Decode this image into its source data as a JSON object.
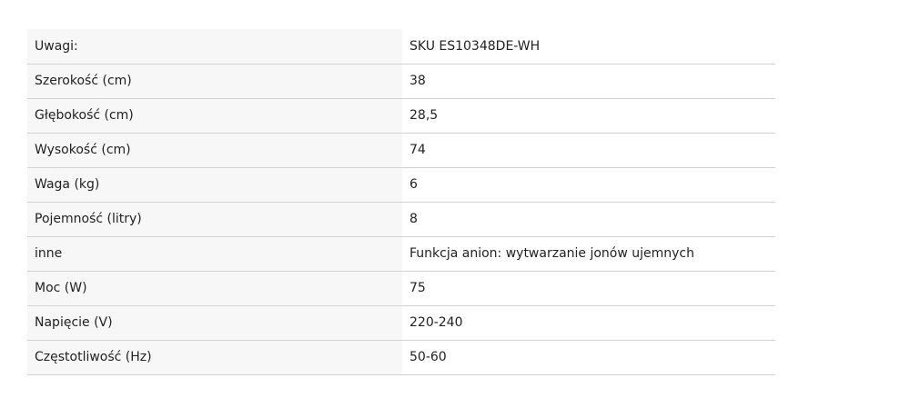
{
  "specs": [
    {
      "label": "Uwagi:",
      "value": "SKU ES10348DE-WH"
    },
    {
      "label": "Szerokość (cm)",
      "value": "38"
    },
    {
      "label": "Głębokość (cm)",
      "value": "28,5"
    },
    {
      "label": "Wysokość (cm)",
      "value": "74"
    },
    {
      "label": "Waga (kg)",
      "value": "6"
    },
    {
      "label": "Pojemność (litry)",
      "value": "8"
    },
    {
      "label": "inne",
      "value": "Funkcja anion: wytwarzanie jonów ujemnych"
    },
    {
      "label": "Moc (W)",
      "value": "75"
    },
    {
      "label": "Napięcie (V)",
      "value": "220-240"
    },
    {
      "label": "Częstotliwość (Hz)",
      "value": "50-60"
    }
  ]
}
